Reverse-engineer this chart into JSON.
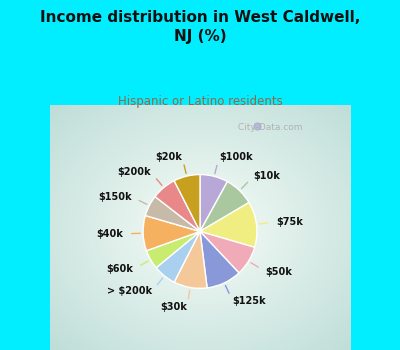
{
  "title": "Income distribution in West Caldwell,\nNJ (%)",
  "subtitle": "Hispanic or Latino residents",
  "title_color": "#111111",
  "subtitle_color": "#996644",
  "bg_cyan": "#00eeff",
  "bg_chart_inner": "#f0faf8",
  "bg_chart_outer": "#b8e8d0",
  "watermark": " City-Data.com",
  "labels": [
    "$100k",
    "$10k",
    "$75k",
    "$50k",
    "$125k",
    "$30k",
    "> $200k",
    "$60k",
    "$40k",
    "$150k",
    "$200k",
    "$20k"
  ],
  "values": [
    8.0,
    8.5,
    13.0,
    8.5,
    10.0,
    9.5,
    6.5,
    5.5,
    10.0,
    6.0,
    7.0,
    7.5
  ],
  "colors": [
    "#b8a8d8",
    "#aac8a0",
    "#f0ee80",
    "#f0aab8",
    "#8898d8",
    "#f5c89a",
    "#aad0f0",
    "#c8ec70",
    "#f5b060",
    "#c8baa8",
    "#e88888",
    "#c8a020"
  ],
  "figsize": [
    4.0,
    3.5
  ],
  "dpi": 100
}
